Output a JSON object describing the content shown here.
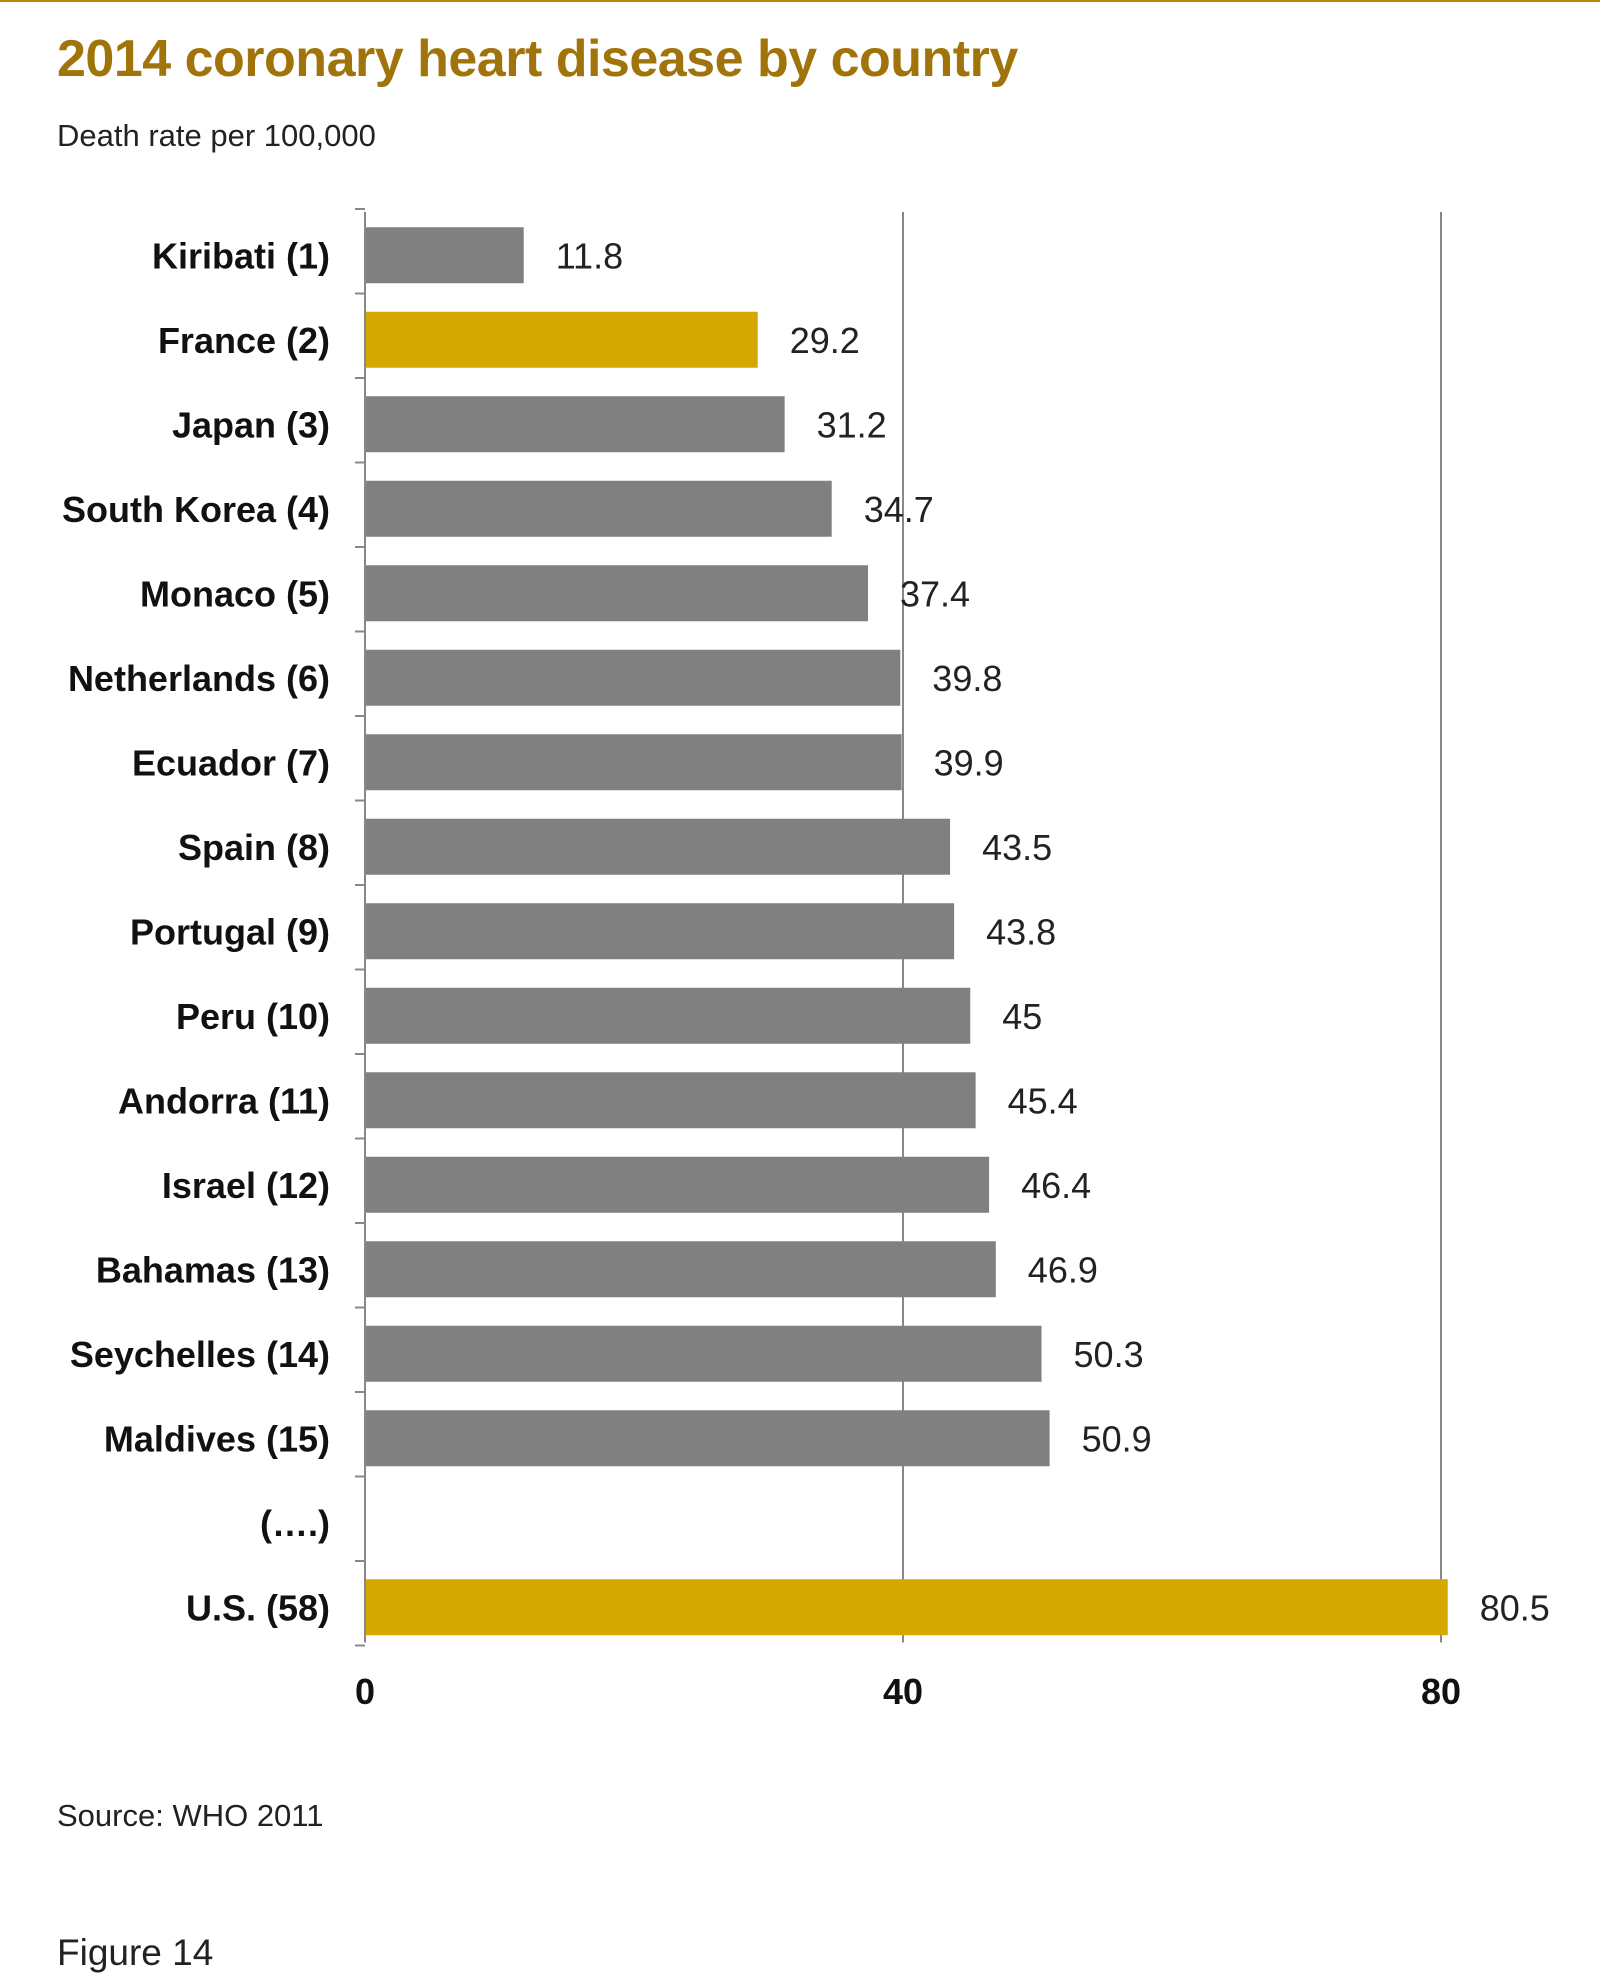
{
  "chart_data": {
    "type": "bar",
    "orientation": "horizontal",
    "title": "2014 coronary heart disease by country",
    "subtitle": "Death rate per 100,000",
    "categories": [
      "Kiribati (1)",
      "France (2)",
      "Japan (3)",
      "South Korea (4)",
      "Monaco (5)",
      "Netherlands (6)",
      "Ecuador (7)",
      "Spain (8)",
      "Portugal (9)",
      "Peru (10)",
      "Andorra (11)",
      "Israel (12)",
      "Bahamas (13)",
      "Seychelles (14)",
      "Maldives (15)",
      "(….)",
      "U.S. (58)"
    ],
    "values": [
      11.8,
      29.2,
      31.2,
      34.7,
      37.4,
      39.8,
      39.9,
      43.5,
      43.8,
      45,
      45.4,
      46.4,
      46.9,
      50.3,
      50.9,
      null,
      80.5
    ],
    "value_labels": [
      "11.8",
      "29.2",
      "31.2",
      "34.7",
      "37.4",
      "39.8",
      "39.9",
      "43.5",
      "43.8",
      "45",
      "45.4",
      "46.4",
      "46.9",
      "50.3",
      "50.9",
      "",
      "80.5"
    ],
    "highlighted": [
      "France (2)",
      "U.S. (58)"
    ],
    "xlim": [
      0,
      80
    ],
    "xticks": [
      0,
      40,
      80
    ],
    "grid": true,
    "xlabel": "",
    "ylabel": "",
    "colors": {
      "bar": "#808080",
      "highlight": "#d4a800",
      "grid": "#888888",
      "title": "#a0740a"
    }
  },
  "footer": {
    "source": "Source: WHO 2011",
    "figure_label": "Figure 14"
  }
}
